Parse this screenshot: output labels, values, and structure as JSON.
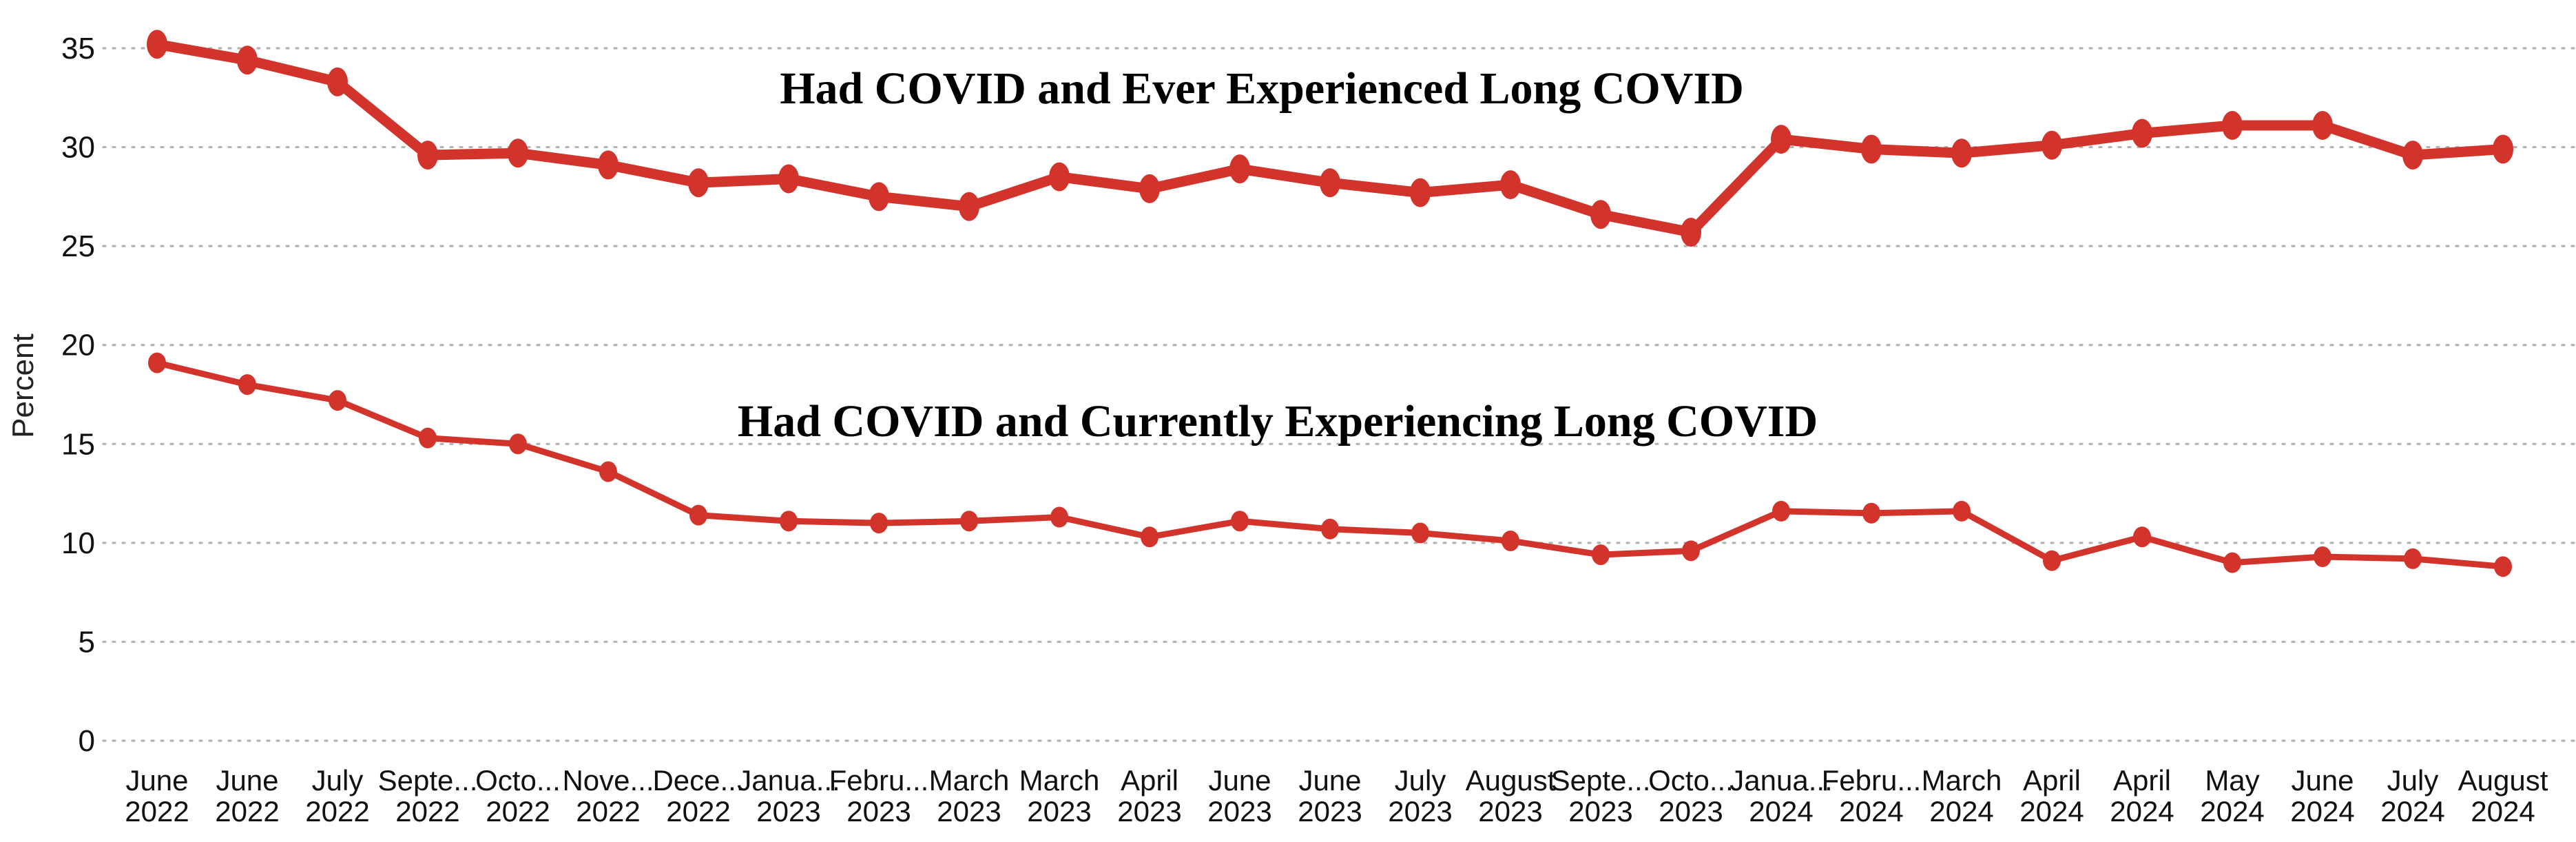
{
  "chart_data": {
    "type": "line",
    "ylabel": "Percent",
    "ylim": [
      0,
      35
    ],
    "yticks": [
      0,
      5,
      10,
      15,
      20,
      25,
      30,
      35
    ],
    "grid": "horizontal-dotted",
    "grid_color": "#b3b3b3",
    "legend_position": "in-plot-annotations",
    "background_color": "#ffffff",
    "categories": [
      {
        "month": "June",
        "year": "2022"
      },
      {
        "month": "June",
        "year": "2022"
      },
      {
        "month": "July",
        "year": "2022"
      },
      {
        "month": "Septe...",
        "year": "2022"
      },
      {
        "month": "Octo...",
        "year": "2022"
      },
      {
        "month": "Nove...",
        "year": "2022"
      },
      {
        "month": "Dece...",
        "year": "2022"
      },
      {
        "month": "Janua...",
        "year": "2023"
      },
      {
        "month": "Febru...",
        "year": "2023"
      },
      {
        "month": "March",
        "year": "2023"
      },
      {
        "month": "March",
        "year": "2023"
      },
      {
        "month": "April",
        "year": "2023"
      },
      {
        "month": "June",
        "year": "2023"
      },
      {
        "month": "June",
        "year": "2023"
      },
      {
        "month": "July",
        "year": "2023"
      },
      {
        "month": "August",
        "year": "2023"
      },
      {
        "month": "Septe...",
        "year": "2023"
      },
      {
        "month": "Octo...",
        "year": "2023"
      },
      {
        "month": "Janua...",
        "year": "2024"
      },
      {
        "month": "Febru...",
        "year": "2024"
      },
      {
        "month": "March",
        "year": "2024"
      },
      {
        "month": "April",
        "year": "2024"
      },
      {
        "month": "April",
        "year": "2024"
      },
      {
        "month": "May",
        "year": "2024"
      },
      {
        "month": "June",
        "year": "2024"
      },
      {
        "month": "July",
        "year": "2024"
      },
      {
        "month": "August",
        "year": "2024"
      }
    ],
    "series": [
      {
        "name": "Had COVID and Ever Experienced Long COVID",
        "color": "#d2342c",
        "values": [
          35.2,
          34.4,
          33.3,
          29.6,
          29.7,
          29.1,
          28.2,
          28.4,
          27.5,
          27.0,
          28.5,
          27.9,
          28.9,
          28.2,
          27.7,
          28.1,
          26.6,
          25.7,
          30.4,
          29.9,
          29.7,
          30.1,
          30.7,
          31.1,
          31.1,
          29.6,
          29.9
        ]
      },
      {
        "name": "Had COVID and Currently Experiencing Long COVID",
        "color": "#d2342c",
        "values": [
          19.1,
          18.0,
          17.2,
          15.3,
          15.0,
          13.6,
          11.4,
          11.1,
          11.0,
          11.1,
          11.3,
          10.3,
          11.1,
          10.7,
          10.5,
          10.1,
          9.4,
          9.6,
          11.6,
          11.5,
          11.6,
          9.1,
          10.3,
          9.0,
          9.3,
          9.2,
          8.8
        ]
      }
    ]
  }
}
